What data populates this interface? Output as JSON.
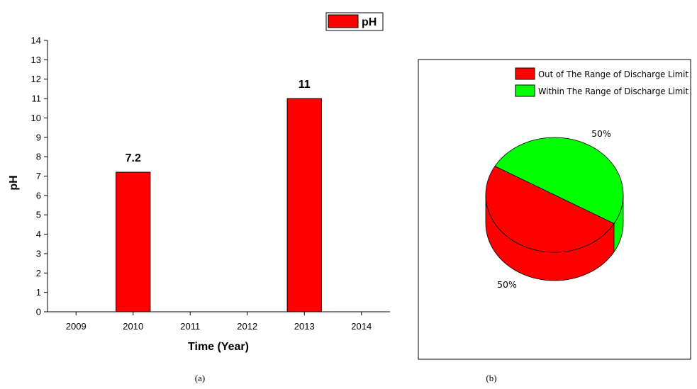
{
  "chart_data": [
    {
      "type": "bar",
      "panel_label": "(a)",
      "xlabel": "Time (Year)",
      "ylabel": "pH",
      "ylim": [
        0,
        14
      ],
      "yticks": [
        0,
        1,
        2,
        3,
        4,
        5,
        6,
        7,
        8,
        9,
        10,
        11,
        12,
        13,
        14
      ],
      "categories": [
        "2009",
        "2010",
        "2011",
        "2012",
        "2013",
        "2014"
      ],
      "series": [
        {
          "name": "pH",
          "color": "#ff0000",
          "values": [
            null,
            7.2,
            null,
            null,
            11,
            null
          ]
        }
      ],
      "data_labels": [
        "",
        "7.2",
        "",
        "",
        "11",
        ""
      ],
      "legend_position": "top-center",
      "grid": false
    },
    {
      "type": "pie",
      "panel_label": "(b)",
      "style": "3d",
      "slices": [
        {
          "name": "Out of The Range of Discharge Limit",
          "value": 50,
          "label": "50%",
          "color": "#ff0000"
        },
        {
          "name": "Within The Range of Discharge Limit",
          "value": 50,
          "label": "50%",
          "color": "#00ff00"
        }
      ],
      "legend_position": "top-right"
    }
  ]
}
